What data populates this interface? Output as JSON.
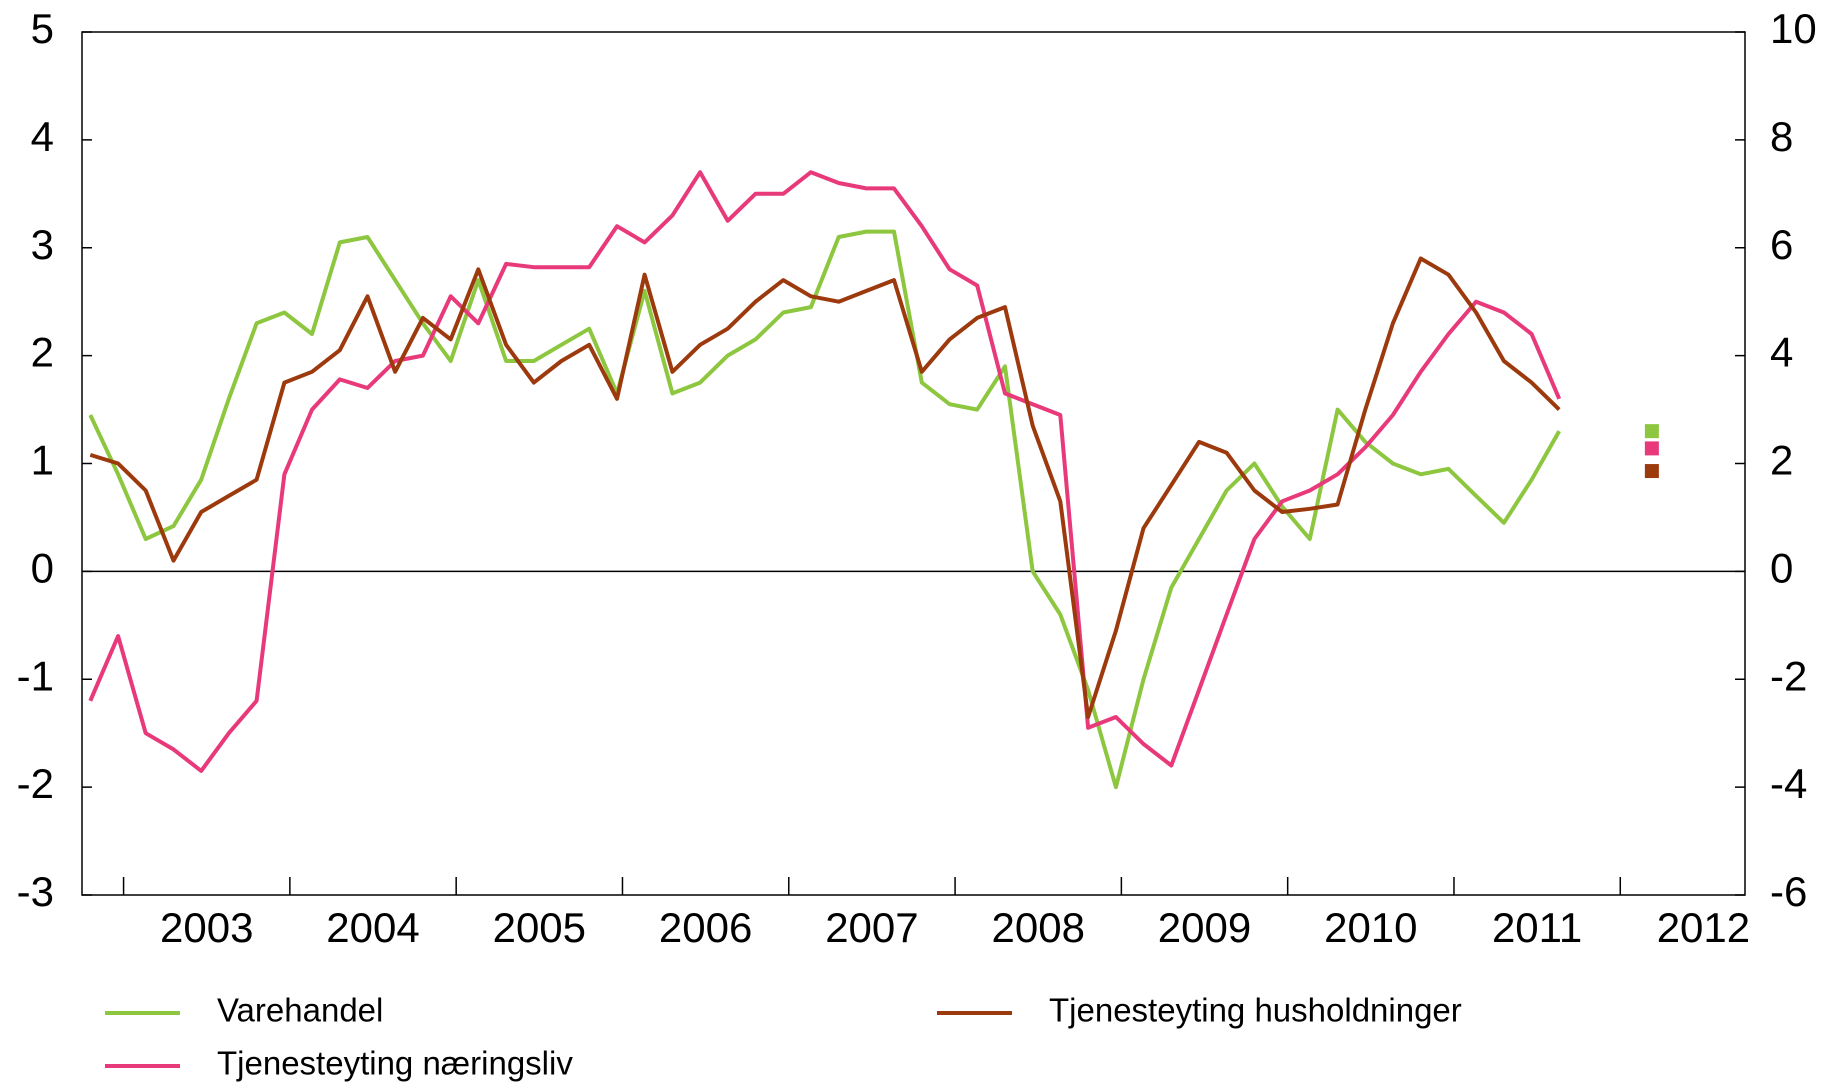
{
  "chart_data": {
    "type": "line",
    "x": [
      2002.8,
      2002.967,
      2003.133,
      2003.3,
      2003.467,
      2003.633,
      2003.8,
      2003.967,
      2004.133,
      2004.3,
      2004.467,
      2004.633,
      2004.8,
      2004.967,
      2005.133,
      2005.3,
      2005.467,
      2005.633,
      2005.8,
      2005.967,
      2006.133,
      2006.3,
      2006.467,
      2006.633,
      2006.8,
      2006.967,
      2007.133,
      2007.3,
      2007.467,
      2007.633,
      2007.8,
      2007.967,
      2008.133,
      2008.3,
      2008.467,
      2008.633,
      2008.8,
      2008.967,
      2009.133,
      2009.3,
      2009.467,
      2009.633,
      2009.8,
      2009.967,
      2010.133,
      2010.3,
      2010.467,
      2010.633,
      2010.8,
      2010.967,
      2011.133,
      2011.3,
      2011.467,
      2011.633
    ],
    "series": [
      {
        "name": "Varehandel",
        "color": "#8dc63f",
        "values": [
          1.45,
          0.9,
          0.3,
          0.42,
          0.85,
          1.6,
          2.3,
          2.4,
          2.2,
          3.05,
          3.1,
          2.7,
          2.3,
          1.95,
          2.7,
          1.95,
          1.95,
          2.1,
          2.25,
          1.65,
          2.6,
          1.65,
          1.75,
          2.0,
          2.15,
          2.4,
          2.45,
          3.1,
          3.15,
          3.15,
          1.75,
          1.55,
          1.5,
          1.9,
          0.0,
          -0.4,
          -1.1,
          -2.0,
          -1.0,
          -0.15,
          0.3,
          0.75,
          1.0,
          0.6,
          0.3,
          1.5,
          1.2,
          1.0,
          0.9,
          0.95,
          0.7,
          0.45,
          0.85,
          1.3
        ],
        "forecast": {
          "x": 2012.19,
          "value": 1.3
        }
      },
      {
        "name": "Tjenesteyting næringsliv",
        "color": "#e8397a",
        "values": [
          -1.2,
          -0.6,
          -1.5,
          -1.65,
          -1.85,
          -1.5,
          -1.2,
          0.9,
          1.5,
          1.78,
          1.7,
          1.95,
          2.0,
          2.55,
          2.3,
          2.85,
          2.82,
          2.82,
          2.82,
          3.2,
          3.05,
          3.3,
          3.7,
          3.25,
          3.5,
          3.5,
          3.7,
          3.6,
          3.55,
          3.55,
          3.2,
          2.8,
          2.65,
          1.65,
          1.55,
          1.45,
          -1.45,
          -1.35,
          -1.6,
          -1.8,
          -1.1,
          -0.4,
          0.3,
          0.65,
          0.75,
          0.9,
          1.15,
          1.45,
          1.85,
          2.2,
          2.5,
          2.4,
          2.2,
          1.6
        ],
        "forecast": {
          "x": 2012.19,
          "value": 1.14
        }
      },
      {
        "name": "Tjenesteyting husholdninger",
        "color": "#9c3a0e",
        "values": [
          1.08,
          1.0,
          0.75,
          0.1,
          0.55,
          0.7,
          0.85,
          1.75,
          1.85,
          2.05,
          2.55,
          1.85,
          2.35,
          2.15,
          2.8,
          2.1,
          1.75,
          1.95,
          2.1,
          1.6,
          2.75,
          1.85,
          2.1,
          2.25,
          2.5,
          2.7,
          2.55,
          2.5,
          2.6,
          2.7,
          1.85,
          2.15,
          2.35,
          2.45,
          1.35,
          0.65,
          -1.35,
          -0.55,
          0.4,
          0.8,
          1.2,
          1.1,
          0.75,
          0.55,
          0.58,
          0.62,
          1.5,
          2.3,
          2.9,
          2.75,
          2.4,
          1.95,
          1.75,
          1.5
        ],
        "forecast": {
          "x": 2012.19,
          "value": 0.93
        }
      }
    ],
    "xlim": [
      2002.75,
      2012.75
    ],
    "xticks": [
      {
        "value": 2003.5,
        "label": "2003"
      },
      {
        "value": 2004.5,
        "label": "2004"
      },
      {
        "value": 2005.5,
        "label": "2005"
      },
      {
        "value": 2006.5,
        "label": "2006"
      },
      {
        "value": 2007.5,
        "label": "2007"
      },
      {
        "value": 2008.5,
        "label": "2008"
      },
      {
        "value": 2009.5,
        "label": "2009"
      },
      {
        "value": 2010.5,
        "label": "2010"
      },
      {
        "value": 2011.5,
        "label": "2011"
      },
      {
        "value": 2012.5,
        "label": "2012"
      }
    ],
    "ylim": [
      -3,
      5
    ],
    "yticks": [
      -3,
      -2,
      -1,
      0,
      1,
      2,
      3,
      4,
      5
    ],
    "y2lim": [
      -6,
      10
    ],
    "y2ticks": [
      -6,
      -4,
      -2,
      0,
      2,
      4,
      6,
      8,
      10
    ]
  }
}
